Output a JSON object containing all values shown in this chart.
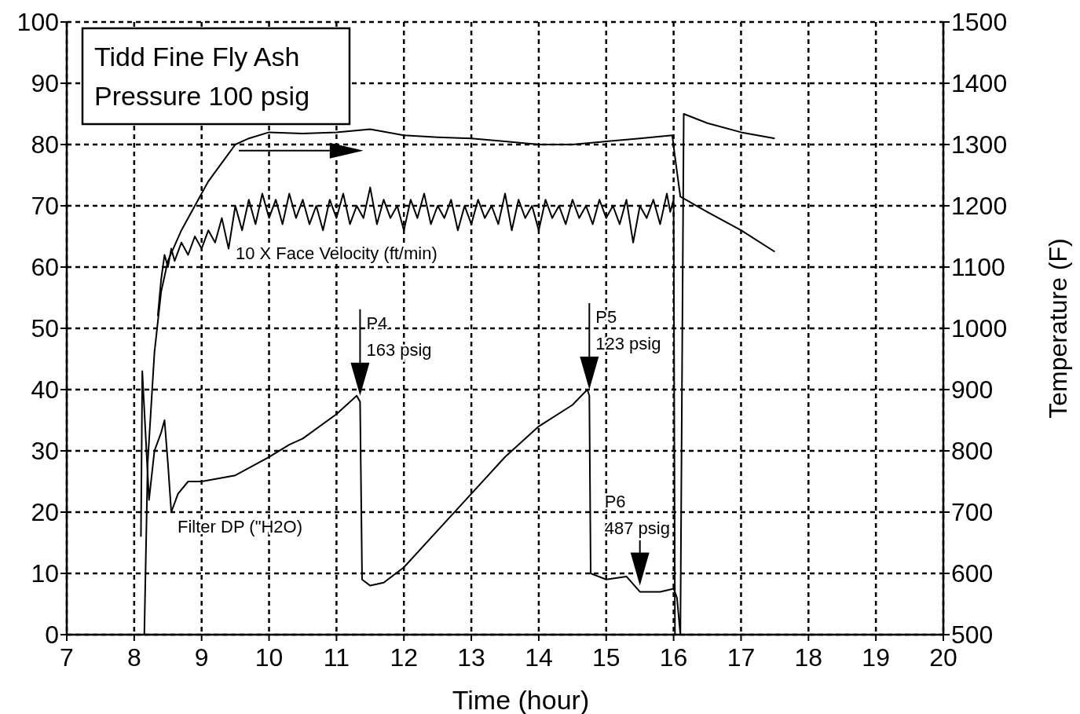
{
  "chart_data": {
    "type": "line",
    "title": "Tidd Fine Fly Ash",
    "subtitle": "Pressure 100 psig",
    "xlabel": "Time (hour)",
    "y2label": "Temperature (F)",
    "xlim": [
      7,
      20
    ],
    "xticks": [
      7,
      8,
      9,
      10,
      11,
      12,
      13,
      14,
      15,
      16,
      17,
      18,
      19,
      20
    ],
    "ylim": [
      0,
      100
    ],
    "yticks": [
      0,
      10,
      20,
      30,
      40,
      50,
      60,
      70,
      80,
      90,
      100
    ],
    "y2lim": [
      500,
      1500
    ],
    "y2ticks": [
      500,
      600,
      700,
      800,
      900,
      1000,
      1100,
      1200,
      1300,
      1400,
      1500
    ],
    "grid": true,
    "legend": false,
    "line_style": "solid",
    "marker": "none",
    "series": [
      {
        "color": "#000000",
        "axis": "y2",
        "x": [
          8.15,
          8.2,
          8.3,
          8.4,
          8.5,
          8.7,
          8.9,
          9.1,
          9.3,
          9.5,
          9.7,
          10,
          10.5,
          11,
          11.5,
          12,
          12.5,
          13,
          13.5,
          14,
          14.5,
          15,
          15.5,
          15.98,
          16.02,
          16.1,
          16.5,
          17,
          17.5
        ],
        "values": [
          500,
          780,
          960,
          1060,
          1110,
          1160,
          1200,
          1240,
          1270,
          1300,
          1310,
          1320,
          1318,
          1320,
          1325,
          1315,
          1312,
          1310,
          1305,
          1300,
          1300,
          1305,
          1310,
          1315,
          1280,
          1215,
          1190,
          1160,
          1125
        ]
      },
      {
        "name": "10 X Face Velocity (ft/min)",
        "color": "#000000",
        "x": [
          8.35,
          8.4,
          8.45,
          8.5,
          8.55,
          8.6,
          8.7,
          8.8,
          8.9,
          9.0,
          9.1,
          9.2,
          9.3,
          9.4,
          9.5,
          9.6,
          9.7,
          9.8,
          9.9,
          10.0,
          10.1,
          10.2,
          10.3,
          10.4,
          10.5,
          10.6,
          10.7,
          10.8,
          10.9,
          11.0,
          11.1,
          11.2,
          11.3,
          11.4,
          11.5,
          11.6,
          11.7,
          11.8,
          11.9,
          12.0,
          12.1,
          12.2,
          12.3,
          12.4,
          12.5,
          12.6,
          12.7,
          12.8,
          12.9,
          13.0,
          13.1,
          13.2,
          13.3,
          13.4,
          13.5,
          13.6,
          13.7,
          13.8,
          13.9,
          14.0,
          14.1,
          14.2,
          14.3,
          14.4,
          14.5,
          14.6,
          14.7,
          14.8,
          14.9,
          15.0,
          15.1,
          15.2,
          15.3,
          15.4,
          15.5,
          15.6,
          15.7,
          15.8,
          15.9,
          15.95,
          16.0,
          16.02
        ],
        "values": [
          52,
          58,
          62,
          60,
          63,
          61,
          64,
          62,
          65,
          63,
          66,
          64,
          68,
          63,
          70,
          66,
          71,
          67,
          72,
          68,
          71,
          67,
          72,
          68,
          71,
          67,
          70,
          66,
          71,
          68,
          72,
          67,
          70,
          68,
          73,
          67,
          71,
          68,
          70,
          66,
          71,
          68,
          72,
          67,
          70,
          68,
          71,
          66,
          70,
          67,
          71,
          68,
          70,
          67,
          72,
          66,
          71,
          68,
          70,
          66,
          71,
          68,
          70,
          67,
          71,
          68,
          70,
          67,
          71,
          68,
          70,
          67,
          71,
          64,
          70,
          68,
          71,
          67,
          72,
          69,
          71,
          0
        ]
      },
      {
        "name": "Filter DP (\"H2O)",
        "color": "#000000",
        "x": [
          8.1,
          8.12,
          8.22,
          8.3,
          8.4,
          8.45,
          8.5,
          8.55,
          8.65,
          8.8,
          9,
          9.5,
          10,
          10.3,
          10.5,
          11,
          11.3,
          11.35,
          11.38,
          11.5,
          11.7,
          12,
          12.5,
          13,
          13.5,
          14,
          14.5,
          14.72,
          14.75,
          14.77,
          15,
          15.3,
          15.5,
          15.8,
          16.0,
          16.05,
          16.1,
          16.15,
          16.5,
          17,
          17.5
        ],
        "values": [
          16,
          43,
          22,
          30,
          33,
          35,
          28,
          20,
          23,
          25,
          25,
          26,
          29,
          31,
          32,
          36,
          39,
          38,
          9,
          8,
          8.5,
          11,
          17,
          23,
          29,
          34,
          37.5,
          40,
          39,
          10,
          9,
          9.5,
          7,
          7,
          7.5,
          6,
          0,
          85,
          83.5,
          82,
          81
        ]
      }
    ],
    "annotations": [
      {
        "text": "P4\n163 psig",
        "x": 11.35,
        "y": 39
      },
      {
        "text": "P5\n123 psig",
        "x": 14.75,
        "y": 40
      },
      {
        "text": "P6\n487 psig",
        "x": 15.5,
        "y": 8
      }
    ]
  }
}
